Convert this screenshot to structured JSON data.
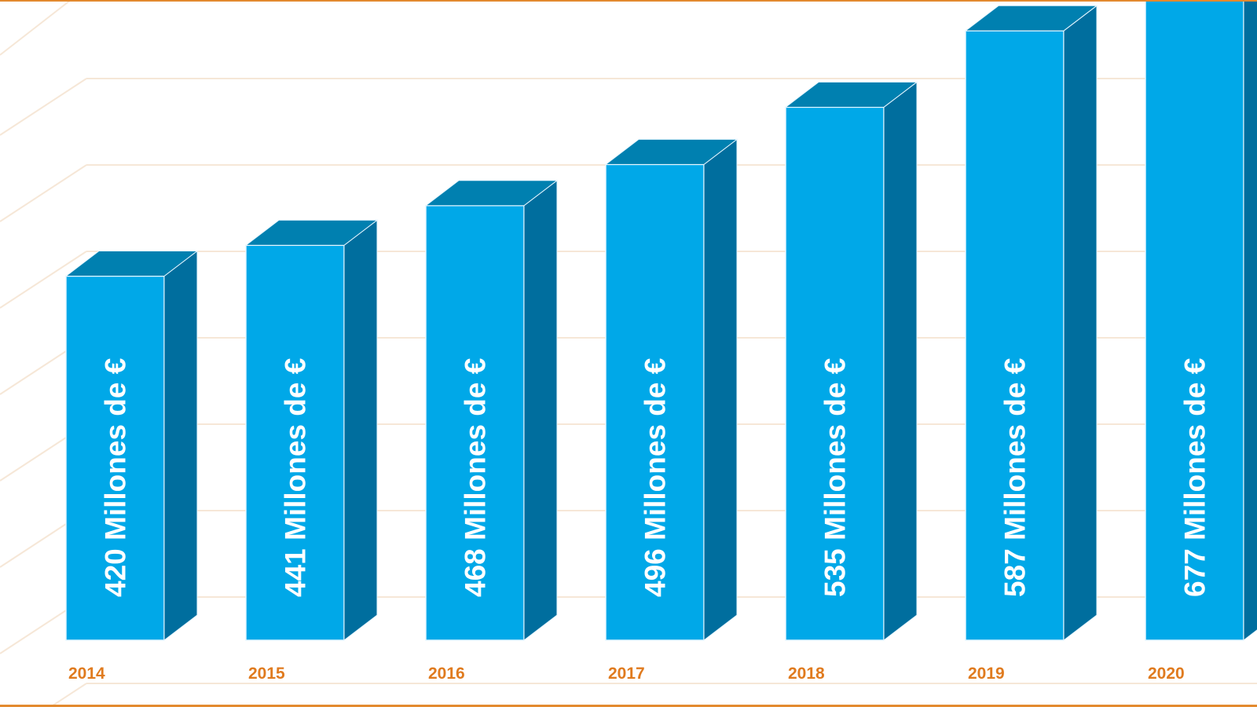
{
  "chart_data": {
    "type": "bar",
    "categories": [
      "2014",
      "2015",
      "2016",
      "2017",
      "2018",
      "2019",
      "2020"
    ],
    "values": [
      420,
      441,
      468,
      496,
      535,
      587,
      677
    ],
    "data_labels": [
      "420 Millones de €",
      "441 Millones de €",
      "468 Millones de €",
      "496 Millones de €",
      "535 Millones de €",
      "587 Millones de €",
      "677 Millones de €"
    ],
    "title": "",
    "xlabel": "",
    "ylabel": "",
    "three_d": true,
    "grid": true,
    "legend": "none"
  },
  "colors": {
    "bar_front": "#00A8E8",
    "bar_side": "#006E9E",
    "bar_top": "#0080B0",
    "bar_edge": "#E6F6FF",
    "year_label": "#E07B1F",
    "frame": "#E38A2F",
    "grid": "#F6E7D7"
  }
}
